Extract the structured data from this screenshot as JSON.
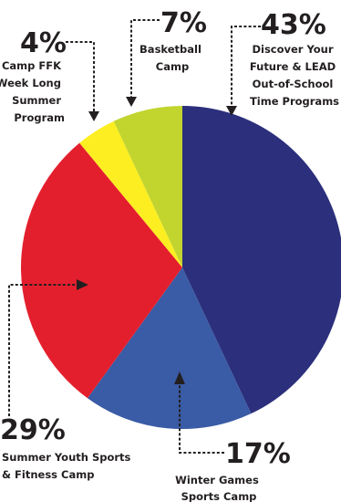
{
  "chart_data": {
    "type": "pie",
    "title": "",
    "slices": [
      {
        "percent": "43%",
        "value": 43,
        "label_lines": [
          "Discover Your",
          "Future & LEAD",
          "Out-of-School",
          "Time Programs"
        ],
        "color": "#2b2f7c"
      },
      {
        "percent": "17%",
        "value": 17,
        "label_lines": [
          "Winter Games",
          "Sports Camp"
        ],
        "color": "#3a5ba5"
      },
      {
        "percent": "29%",
        "value": 29,
        "label_lines": [
          "Summer Youth Sports",
          "& Fitness Camp"
        ],
        "color": "#e41f2d"
      },
      {
        "percent": "4%",
        "value": 4,
        "label_lines": [
          "Camp FFK",
          "(Week Long",
          "Summer",
          "Program"
        ],
        "color": "#fdee21"
      },
      {
        "percent": "7%",
        "value": 7,
        "label_lines": [
          "Basketball",
          "Camp"
        ],
        "color": "#c2d52f"
      }
    ]
  }
}
